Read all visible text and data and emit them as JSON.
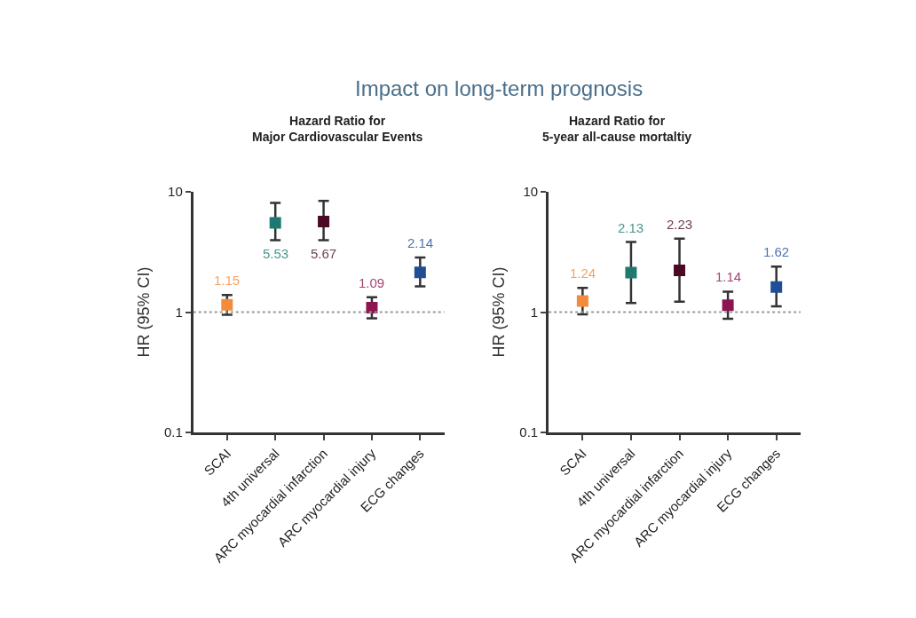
{
  "chart_data": [
    {
      "type": "scatter",
      "title": "Impact on long-term prognosis",
      "subtitle": "Hazard Ratio for\nMajor Cardiovascular Events",
      "ylabel": "HR (95% CI)",
      "categories": [
        "SCAI",
        "4th universal",
        "ARC myocardial infarction",
        "ARC myocardial injury",
        "ECG changes"
      ],
      "values": [
        1.15,
        5.53,
        5.67,
        1.09,
        2.14
      ],
      "errors": [
        [
          0.95,
          1.39
        ],
        [
          3.96,
          8.1
        ],
        [
          3.96,
          8.4
        ],
        [
          0.89,
          1.33
        ],
        [
          1.64,
          2.85
        ]
      ],
      "colors": [
        "#f28c3c",
        "#1e7a70",
        "#4a0a24",
        "#8c1450",
        "#1f4e96"
      ],
      "data_labels": true,
      "marker": "square",
      "log": true,
      "ylim": [
        0.1,
        10
      ],
      "yticks": [
        0.1,
        1,
        10
      ],
      "ref_lines": [
        {
          "axis": "y",
          "value": 1,
          "color": "#999999",
          "line_style": "dotted"
        }
      ]
    },
    {
      "type": "scatter",
      "subtitle": "Hazard Ratio for\n5-year all-cause mortaltiy",
      "ylabel": "HR (95% CI)",
      "categories": [
        "SCAI",
        "4th universal",
        "ARC myocardial infarction",
        "ARC myocardial injury",
        "ECG changes"
      ],
      "values": [
        1.24,
        2.13,
        2.23,
        1.14,
        1.62
      ],
      "errors": [
        [
          0.96,
          1.59
        ],
        [
          1.19,
          3.83
        ],
        [
          1.22,
          4.09
        ],
        [
          0.88,
          1.48
        ],
        [
          1.12,
          2.39
        ]
      ],
      "colors": [
        "#f28c3c",
        "#1e7a70",
        "#4a0a24",
        "#8c1450",
        "#1f4e96"
      ],
      "data_labels": true,
      "marker": "square",
      "log": true,
      "ylim": [
        0.1,
        10
      ],
      "yticks": [
        0.1,
        1,
        10
      ],
      "ref_lines": [
        {
          "axis": "y",
          "value": 1,
          "color": "#999999",
          "line_style": "dotted"
        }
      ]
    }
  ]
}
